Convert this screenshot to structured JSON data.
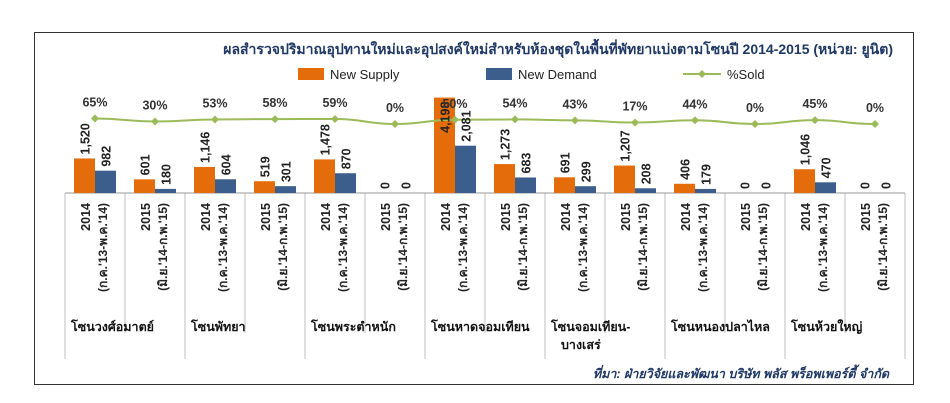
{
  "chart_data": {
    "type": "bar",
    "title": "ผลสำรวจปริมาณอุปทานใหม่และอุปสงค์ใหม่สำหรับห้องชุดในพื้นที่พัทยาแบ่งตามโซนปี 2014-2015 (หน่วย: ยูนิต)",
    "source": "ที่มา: ฝ่ายวิจัยและพัฒนา บริษัท พลัส พร็อพเพอร์ตี้ จำกัด",
    "legend_position": "top",
    "colors": {
      "supply": "#E46C0A",
      "demand": "#3B5E8C",
      "sold": "#9BBB59"
    },
    "categories": [
      {
        "year": "2014",
        "period": "(ก.ค.'13-พ.ค.'14)"
      },
      {
        "year": "2015",
        "period": "(มิ.ย.'14-ก.พ.'15)"
      },
      {
        "year": "2014",
        "period": "(ก.ค.'13-พ.ค.'14)"
      },
      {
        "year": "2015",
        "period": "(มิ.ย.'14-ก.พ.'15)"
      },
      {
        "year": "2014",
        "period": "(ก.ค.'13-พ.ค.'14)"
      },
      {
        "year": "2015",
        "period": "(มิ.ย.'14-ก.พ.'15)"
      },
      {
        "year": "2014",
        "period": "(ก.ค.'13-พ.ค.'14)"
      },
      {
        "year": "2015",
        "period": "(มิ.ย.'14-ก.พ.'15)"
      },
      {
        "year": "2014",
        "period": "(ก.ค.'13-พ.ค.'14)"
      },
      {
        "year": "2015",
        "period": "(มิ.ย.'14-ก.พ.'15)"
      },
      {
        "year": "2014",
        "period": "(ก.ค.'13-พ.ค.'14)"
      },
      {
        "year": "2015",
        "period": "(มิ.ย.'14-ก.พ.'15)"
      },
      {
        "year": "2014",
        "period": "(ก.ค.'13-พ.ค.'14)"
      },
      {
        "year": "2015",
        "period": "(มิ.ย.'14-ก.พ.'15)"
      }
    ],
    "zones": [
      "โซนวงศ์อมาตย์",
      "โซนพัทยา",
      "โซนพระตำหนัก",
      "โซนหาดจอมเทียน",
      "โซนจอมเทียน-บางเสร่",
      "โซนหนองปลาไหล",
      "โซนห้วยใหญ่"
    ],
    "series": [
      {
        "name": "New Supply",
        "values": [
          1520,
          601,
          1146,
          519,
          1478,
          0,
          4198,
          1273,
          691,
          1207,
          406,
          0,
          1046,
          0
        ],
        "labels": [
          "1,520",
          "601",
          "1,146",
          "519",
          "1,478",
          "0",
          "4,198",
          "1,273",
          "691",
          "1,207",
          "406",
          "0",
          "1,046",
          "0"
        ]
      },
      {
        "name": "New Demand",
        "values": [
          982,
          180,
          604,
          301,
          870,
          0,
          2081,
          683,
          299,
          208,
          179,
          0,
          470,
          0
        ],
        "labels": [
          "982",
          "180",
          "604",
          "301",
          "870",
          "0",
          "2,081",
          "683",
          "299",
          "208",
          "179",
          "0",
          "470",
          "0"
        ]
      },
      {
        "name": "%Sold",
        "values": [
          65,
          30,
          53,
          58,
          59,
          0,
          50,
          54,
          43,
          17,
          44,
          0,
          45,
          0
        ],
        "labels": [
          "65%",
          "30%",
          "53%",
          "58%",
          "59%",
          "0%",
          "50%",
          "54%",
          "43%",
          "17%",
          "44%",
          "0%",
          "45%",
          "0%"
        ]
      }
    ]
  }
}
